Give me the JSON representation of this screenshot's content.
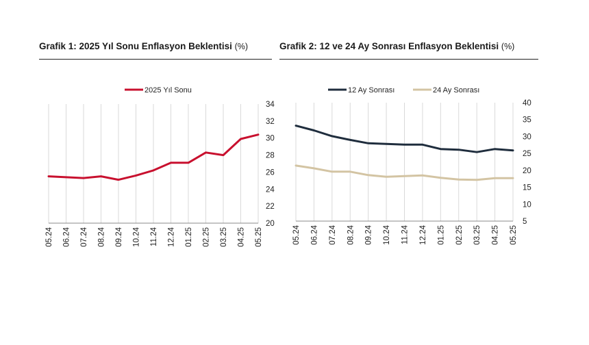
{
  "colors": {
    "c2025": "#c8102e",
    "c12": "#1f2d3d",
    "c24": "#d3c4a3"
  },
  "chart_data": [
    {
      "type": "line",
      "title": "Grafik 1: 2025 Yıl Sonu Enflasyon Beklentisi",
      "unit": "(%)",
      "categories": [
        "05.24",
        "06.24",
        "07.24",
        "08.24",
        "09.24",
        "10.24",
        "11.24",
        "12.24",
        "01.25",
        "02.25",
        "03.25",
        "04.25",
        "05.25"
      ],
      "series": [
        {
          "name": "2025 Yıl Sonu",
          "values": [
            25.5,
            25.4,
            25.3,
            25.5,
            25.1,
            25.6,
            26.2,
            27.1,
            27.1,
            28.3,
            28.0,
            29.9,
            30.4
          ]
        }
      ],
      "ylim": [
        20,
        34
      ],
      "yticks": [
        20,
        22,
        24,
        26,
        28,
        30,
        32,
        34
      ],
      "ytick_labels": [
        "20",
        "22",
        "24",
        "26",
        "28",
        "30",
        "32",
        "34"
      ],
      "legend": "top-center",
      "grid": "vertical"
    },
    {
      "type": "line",
      "title": "Grafik 2: 12 ve 24 Ay Sonrası Enflasyon Beklentisi",
      "unit": "(%)",
      "categories": [
        "05.24",
        "06.24",
        "07.24",
        "08.24",
        "09.24",
        "10.24",
        "11.24",
        "12.24",
        "01.25",
        "02.25",
        "03.25",
        "04.25",
        "05.25"
      ],
      "series": [
        {
          "name": "12 Ay Sonrası",
          "values": [
            33.2,
            31.8,
            30.1,
            29.0,
            28.0,
            27.8,
            27.6,
            27.6,
            26.3,
            26.1,
            25.4,
            26.3,
            25.9
          ]
        },
        {
          "name": "24 Ay Sonrası",
          "values": [
            21.4,
            20.6,
            19.6,
            19.6,
            18.6,
            18.1,
            18.3,
            18.5,
            17.8,
            17.3,
            17.2,
            17.7,
            17.7
          ]
        }
      ],
      "ylim": [
        5,
        40
      ],
      "yticks": [
        5,
        10,
        15,
        20,
        25,
        30,
        35,
        40
      ],
      "ytick_labels": [
        "5",
        "10",
        "15",
        "20",
        "25",
        "30",
        "35",
        "40"
      ],
      "legend": "top-center",
      "grid": "vertical"
    }
  ]
}
